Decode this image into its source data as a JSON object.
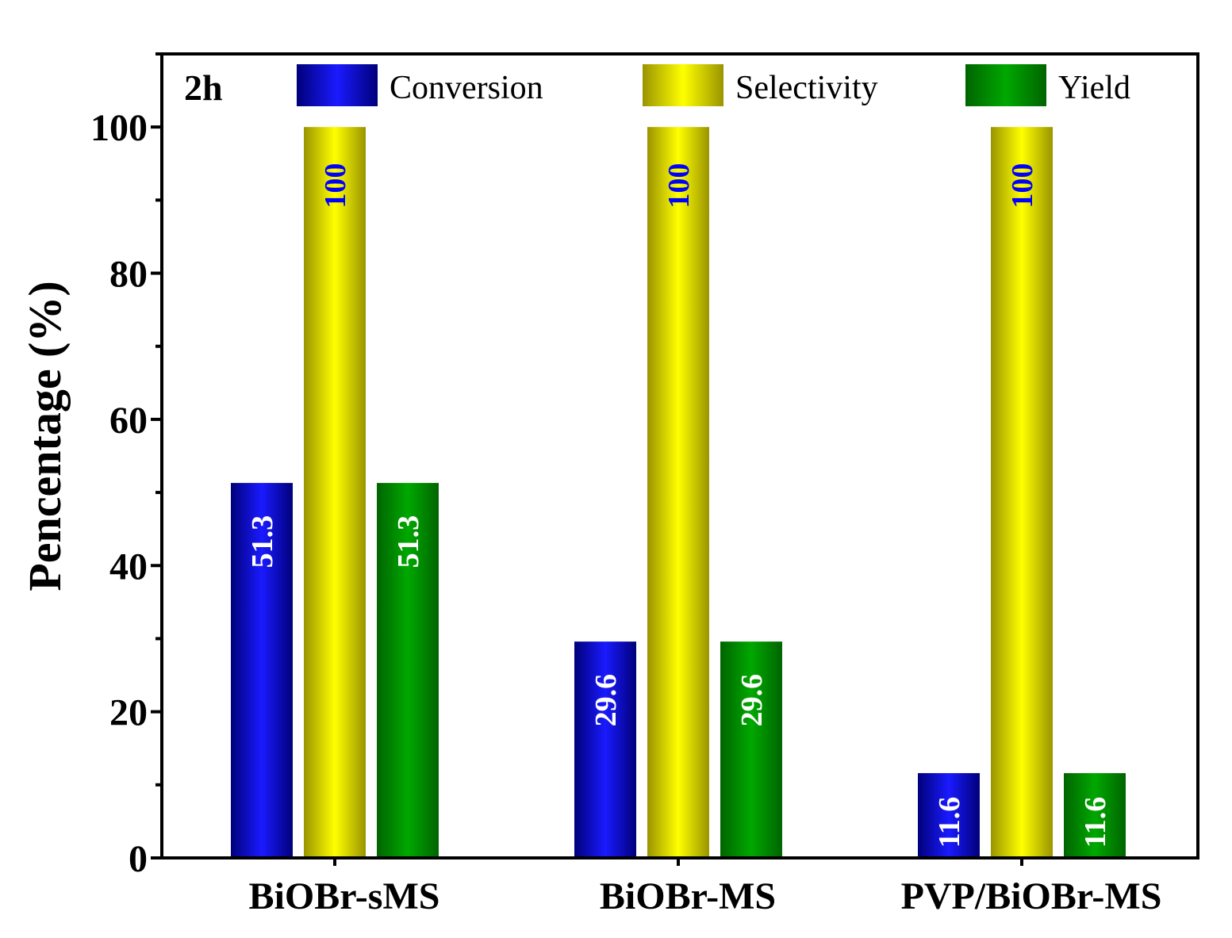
{
  "chart_data": {
    "type": "bar",
    "title": "",
    "panel_tag": "2h",
    "xlabel": "",
    "ylabel": "Pencentage (%)",
    "ylim": [
      0,
      110
    ],
    "yticks": [
      0,
      20,
      40,
      60,
      80,
      100
    ],
    "categories": [
      "BiOBr-sMS",
      "BiOBr-MS",
      "PVP/BiOBr-MS"
    ],
    "series": [
      {
        "name": "Conversion",
        "values": [
          51.3,
          29.6,
          11.6
        ],
        "labels": [
          "51.3",
          "29.6",
          "11.6"
        ],
        "color_dark": "#00007a",
        "color_light": "#1a1aff",
        "label_color": "#ffffff"
      },
      {
        "name": "Selectivity",
        "values": [
          100,
          100,
          100
        ],
        "labels": [
          "100",
          "100",
          "100"
        ],
        "color_dark": "#9a9400",
        "color_light": "#ffff00",
        "label_color": "#0000ff"
      },
      {
        "name": "Yield",
        "values": [
          51.3,
          29.6,
          11.6
        ],
        "labels": [
          "51.3",
          "29.6",
          "11.6"
        ],
        "color_dark": "#006400",
        "color_light": "#00a800",
        "label_color": "#ffffff"
      }
    ],
    "legend_position": "top"
  }
}
